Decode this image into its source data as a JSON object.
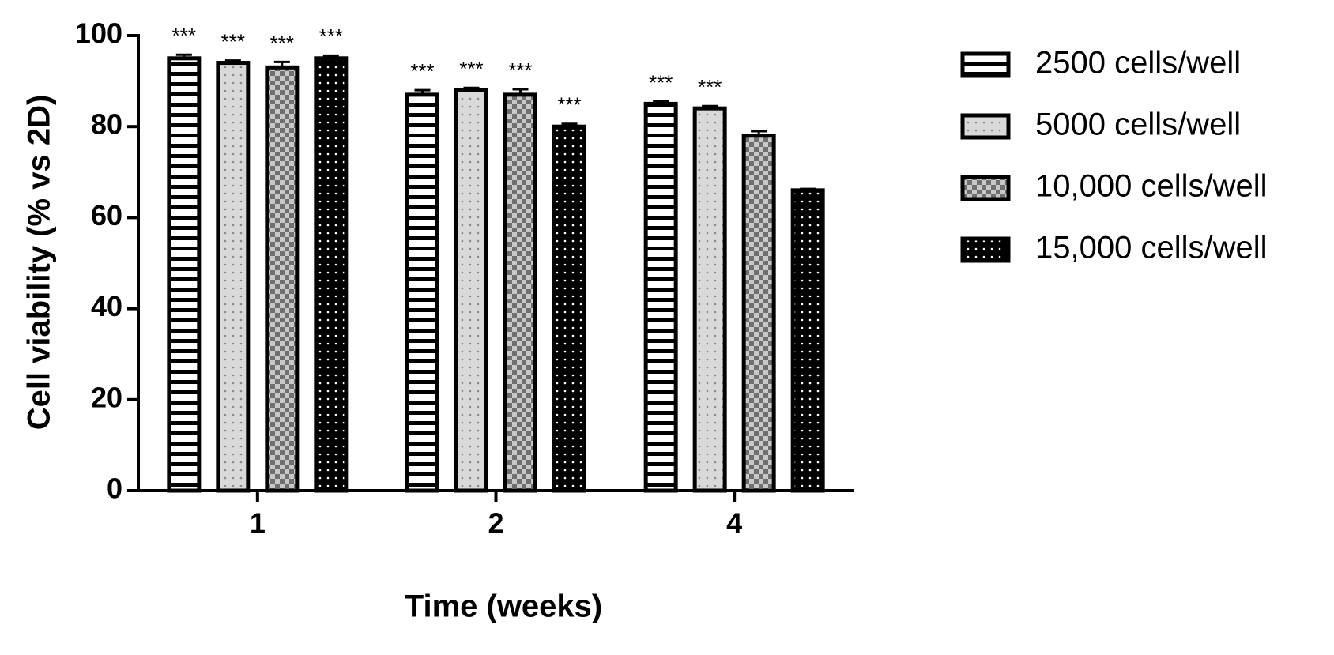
{
  "chart_data": {
    "type": "bar",
    "x_label": "Time (weeks)",
    "y_label": "Cell viability (% vs 2D)",
    "categories": [
      "1",
      "2",
      "4"
    ],
    "ylim": [
      0,
      100
    ],
    "yticks": [
      0,
      20,
      40,
      60,
      80,
      100
    ],
    "series": [
      {
        "name": "2500 cells/well",
        "color": "#ffffff",
        "pattern": "stripes",
        "values": [
          95,
          87,
          85
        ],
        "errors": [
          0.8,
          1,
          0.5
        ],
        "labels": [
          "***",
          "***",
          "***"
        ]
      },
      {
        "name": "5000 cells/well",
        "color": "#d9d9d9",
        "pattern": "dots",
        "values": [
          94,
          88,
          84
        ],
        "errors": [
          0.5,
          0.5,
          0.5
        ],
        "labels": [
          "***",
          "***",
          "***"
        ]
      },
      {
        "name": "10,000 cells/well",
        "color": "#9a9a9a",
        "pattern": "checker",
        "values": [
          93,
          87,
          78
        ],
        "errors": [
          1.2,
          1.2,
          1
        ],
        "labels": [
          "***",
          "***",
          null
        ]
      },
      {
        "name": "15,000 cells/well",
        "color": "#000000",
        "pattern": "dots",
        "values": [
          95,
          80,
          66
        ],
        "errors": [
          0.6,
          0.6,
          0.3
        ],
        "labels": [
          "***",
          "***",
          null
        ]
      }
    ]
  }
}
